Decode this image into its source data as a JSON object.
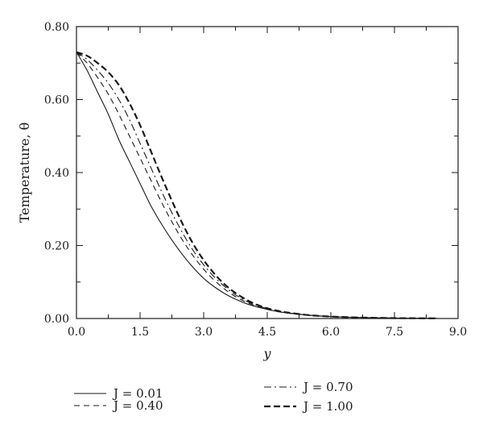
{
  "chart_data": {
    "type": "line",
    "xlabel": "y",
    "ylabel": "Temperature, θ",
    "xlim": [
      0,
      9
    ],
    "ylim": [
      0,
      0.8
    ],
    "x_ticks": [
      "0.0",
      "1.5",
      "3.0",
      "4.5",
      "6.0",
      "7.5",
      "9.0"
    ],
    "y_ticks": [
      "0.00",
      "0.20",
      "0.40",
      "0.60",
      "0.80"
    ],
    "grid": false,
    "legend_position": "bottom",
    "x": [
      0,
      0.25,
      0.5,
      0.75,
      1,
      1.25,
      1.5,
      1.75,
      2,
      2.25,
      2.5,
      2.75,
      3,
      3.25,
      3.5,
      3.75,
      4,
      4.25,
      4.5,
      4.75,
      5,
      5.5,
      6,
      6.5,
      7,
      7.5,
      8,
      8.5
    ],
    "series": [
      {
        "name": "J = 0.01",
        "dash": "solid",
        "values": [
          0.73,
          0.68,
          0.62,
          0.56,
          0.49,
          0.43,
          0.37,
          0.31,
          0.26,
          0.215,
          0.175,
          0.14,
          0.11,
          0.087,
          0.068,
          0.053,
          0.041,
          0.032,
          0.025,
          0.019,
          0.015,
          0.009,
          0.0055,
          0.0033,
          0.002,
          0.0012,
          0.0007,
          0.0004
        ]
      },
      {
        "name": "J = 0.40",
        "dash": "dashed",
        "values": [
          0.73,
          0.7,
          0.66,
          0.615,
          0.56,
          0.5,
          0.44,
          0.38,
          0.32,
          0.265,
          0.215,
          0.172,
          0.135,
          0.105,
          0.08,
          0.06,
          0.045,
          0.034,
          0.025,
          0.019,
          0.0145,
          0.0085,
          0.005,
          0.003,
          0.0018,
          0.0011,
          0.0006,
          0.0004
        ]
      },
      {
        "name": "J = 0.70",
        "dash": "dashdot",
        "values": [
          0.73,
          0.71,
          0.68,
          0.645,
          0.6,
          0.545,
          0.48,
          0.415,
          0.35,
          0.29,
          0.235,
          0.187,
          0.147,
          0.114,
          0.087,
          0.065,
          0.048,
          0.036,
          0.027,
          0.02,
          0.015,
          0.0088,
          0.0052,
          0.0031,
          0.0019,
          0.0011,
          0.0007,
          0.0004
        ]
      },
      {
        "name": "J = 1.00",
        "dash": "bold-dashed",
        "values": [
          0.73,
          0.72,
          0.7,
          0.675,
          0.64,
          0.59,
          0.53,
          0.46,
          0.39,
          0.323,
          0.26,
          0.205,
          0.16,
          0.123,
          0.093,
          0.07,
          0.052,
          0.038,
          0.028,
          0.021,
          0.016,
          0.009,
          0.0053,
          0.0032,
          0.0019,
          0.0011,
          0.0007,
          0.0004
        ]
      }
    ]
  }
}
